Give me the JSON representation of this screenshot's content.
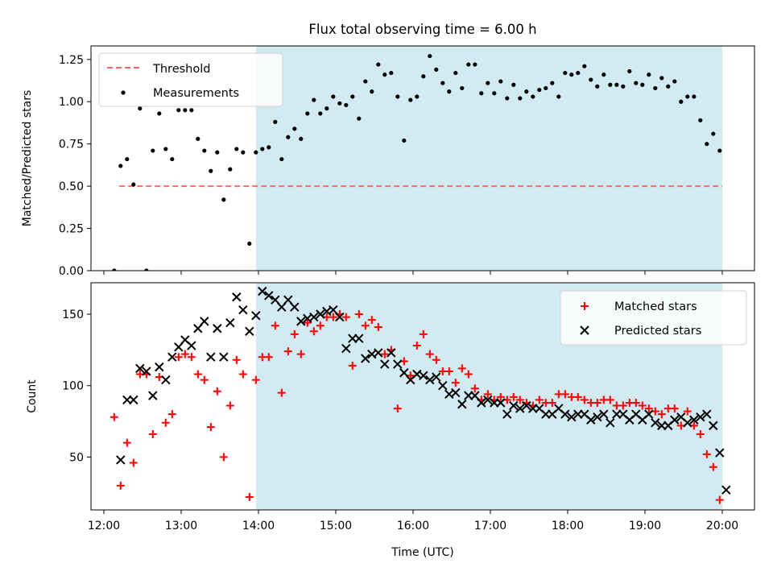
{
  "chart_data": [
    {
      "type": "scatter",
      "title": "Flux total observing time = 6.00 h",
      "xlabel": "",
      "ylabel": "Matched/Predicted stars",
      "xlim": [
        "11:50",
        "20:25"
      ],
      "ylim": [
        0,
        1.33
      ],
      "x_ticks": [
        "12:00",
        "13:00",
        "14:00",
        "15:00",
        "16:00",
        "17:00",
        "18:00",
        "19:00",
        "20:00"
      ],
      "y_ticks": [
        "0.00",
        "0.25",
        "0.50",
        "0.75",
        "1.00",
        "1.25"
      ],
      "shaded_region": {
        "start": "13:58",
        "end": "20:00",
        "color": "#add8e6"
      },
      "legend": {
        "position": "top-left",
        "entries": [
          "Threshold",
          "Measurements"
        ]
      },
      "series": [
        {
          "name": "Threshold",
          "style": "dashed-line",
          "color": "#ff6666",
          "x": [
            "12:12",
            "20:00"
          ],
          "y": [
            0.5,
            0.5
          ]
        },
        {
          "name": "Measurements",
          "style": "dot",
          "color": "#000000",
          "x": [
            "12:08",
            "12:13",
            "12:18",
            "12:23",
            "12:28",
            "12:33",
            "12:38",
            "12:43",
            "12:48",
            "12:53",
            "12:58",
            "13:03",
            "13:08",
            "13:13",
            "13:18",
            "13:23",
            "13:28",
            "13:33",
            "13:38",
            "13:43",
            "13:48",
            "13:53",
            "13:58",
            "14:03",
            "14:08",
            "14:13",
            "14:18",
            "14:23",
            "14:28",
            "14:33",
            "14:38",
            "14:43",
            "14:48",
            "14:53",
            "14:58",
            "15:03",
            "15:08",
            "15:13",
            "15:18",
            "15:23",
            "15:28",
            "15:33",
            "15:38",
            "15:43",
            "15:48",
            "15:53",
            "15:58",
            "16:03",
            "16:08",
            "16:13",
            "16:18",
            "16:23",
            "16:28",
            "16:33",
            "16:38",
            "16:43",
            "16:48",
            "16:53",
            "16:58",
            "17:03",
            "17:08",
            "17:13",
            "17:18",
            "17:23",
            "17:28",
            "17:33",
            "17:38",
            "17:43",
            "17:48",
            "17:53",
            "17:58",
            "18:03",
            "18:08",
            "18:13",
            "18:18",
            "18:23",
            "18:28",
            "18:33",
            "18:38",
            "18:43",
            "18:48",
            "18:53",
            "18:58",
            "19:03",
            "19:08",
            "19:13",
            "19:18",
            "19:23",
            "19:28",
            "19:33",
            "19:38",
            "19:43",
            "19:48",
            "19:53",
            "19:58"
          ],
          "y": [
            0.0,
            0.62,
            0.66,
            0.51,
            0.96,
            0.0,
            0.71,
            0.93,
            0.72,
            0.66,
            0.95,
            0.95,
            0.95,
            0.78,
            0.71,
            0.59,
            0.7,
            0.42,
            0.6,
            0.72,
            0.7,
            0.16,
            0.7,
            0.72,
            0.73,
            0.88,
            0.66,
            0.79,
            0.84,
            0.78,
            0.93,
            1.01,
            0.93,
            0.96,
            1.03,
            0.99,
            0.98,
            1.03,
            0.9,
            1.12,
            1.06,
            1.22,
            1.16,
            1.17,
            1.03,
            0.77,
            1.01,
            1.03,
            1.15,
            1.27,
            1.19,
            1.11,
            1.06,
            1.17,
            1.08,
            1.22,
            1.22,
            1.05,
            1.11,
            1.05,
            1.12,
            1.02,
            1.1,
            1.02,
            1.06,
            1.03,
            1.07,
            1.08,
            1.11,
            1.03,
            1.17,
            1.16,
            1.17,
            1.21,
            1.13,
            1.09,
            1.16,
            1.1,
            1.1,
            1.09,
            1.18,
            1.11,
            1.1,
            1.16,
            1.08,
            1.14,
            1.09,
            1.12,
            1.0,
            1.03,
            1.03,
            0.89,
            0.75,
            0.81,
            0.71
          ]
        }
      ]
    },
    {
      "type": "scatter",
      "title": "",
      "xlabel": "Time (UTC)",
      "ylabel": "Count",
      "xlim": [
        "11:50",
        "20:25"
      ],
      "ylim": [
        13,
        172
      ],
      "x_ticks": [
        "12:00",
        "13:00",
        "14:00",
        "15:00",
        "16:00",
        "17:00",
        "18:00",
        "19:00",
        "20:00"
      ],
      "y_ticks": [
        "50",
        "100",
        "150"
      ],
      "shaded_region": {
        "start": "13:58",
        "end": "20:00",
        "color": "#add8e6"
      },
      "legend": {
        "position": "top-right",
        "entries": [
          "Matched stars",
          "Predicted stars"
        ]
      },
      "series": [
        {
          "name": "Matched stars",
          "marker": "plus",
          "color": "#ff0000",
          "x": [
            "12:08",
            "12:13",
            "12:18",
            "12:23",
            "12:28",
            "12:33",
            "12:38",
            "12:43",
            "12:48",
            "12:53",
            "12:58",
            "13:03",
            "13:08",
            "13:13",
            "13:18",
            "13:23",
            "13:28",
            "13:33",
            "13:38",
            "13:43",
            "13:48",
            "13:53",
            "13:58",
            "14:03",
            "14:08",
            "14:13",
            "14:18",
            "14:23",
            "14:28",
            "14:33",
            "14:38",
            "14:43",
            "14:48",
            "14:53",
            "14:58",
            "15:03",
            "15:08",
            "15:13",
            "15:18",
            "15:23",
            "15:28",
            "15:33",
            "15:38",
            "15:43",
            "15:48",
            "15:53",
            "15:58",
            "16:03",
            "16:08",
            "16:13",
            "16:18",
            "16:23",
            "16:28",
            "16:33",
            "16:38",
            "16:43",
            "16:48",
            "16:53",
            "16:58",
            "17:03",
            "17:08",
            "17:13",
            "17:18",
            "17:23",
            "17:28",
            "17:33",
            "17:38",
            "17:43",
            "17:48",
            "17:53",
            "17:58",
            "18:03",
            "18:08",
            "18:13",
            "18:18",
            "18:23",
            "18:28",
            "18:33",
            "18:38",
            "18:43",
            "18:48",
            "18:53",
            "18:58",
            "19:03",
            "19:08",
            "19:13",
            "19:18",
            "19:23",
            "19:28",
            "19:33",
            "19:38",
            "19:43",
            "19:48",
            "19:53",
            "19:58"
          ],
          "y": [
            78,
            30,
            60,
            46,
            108,
            108,
            66,
            106,
            74,
            80,
            120,
            122,
            120,
            108,
            104,
            71,
            96,
            50,
            86,
            118,
            108,
            22,
            104,
            120,
            120,
            142,
            95,
            124,
            136,
            122,
            144,
            138,
            142,
            148,
            148,
            150,
            148,
            114,
            150,
            142,
            146,
            141,
            122,
            125,
            84,
            117,
            107,
            128,
            136,
            122,
            118,
            110,
            110,
            102,
            112,
            108,
            98,
            90,
            94,
            90,
            92,
            90,
            92,
            90,
            88,
            86,
            90,
            88,
            88,
            94,
            94,
            92,
            92,
            90,
            88,
            88,
            90,
            90,
            86,
            86,
            88,
            88,
            86,
            84,
            82,
            80,
            84,
            84,
            72,
            82,
            72,
            66,
            52,
            43,
            20
          ]
        },
        {
          "name": "Predicted stars",
          "marker": "x",
          "color": "#000000",
          "x": [
            "12:13",
            "12:18",
            "12:23",
            "12:28",
            "12:33",
            "12:38",
            "12:43",
            "12:48",
            "12:53",
            "12:58",
            "13:03",
            "13:08",
            "13:13",
            "13:18",
            "13:23",
            "13:28",
            "13:33",
            "13:38",
            "13:43",
            "13:48",
            "13:53",
            "13:58",
            "14:03",
            "14:08",
            "14:13",
            "14:18",
            "14:23",
            "14:28",
            "14:33",
            "14:38",
            "14:43",
            "14:48",
            "14:53",
            "14:58",
            "15:03",
            "15:08",
            "15:13",
            "15:18",
            "15:23",
            "15:28",
            "15:33",
            "15:38",
            "15:43",
            "15:48",
            "15:53",
            "15:58",
            "16:03",
            "16:08",
            "16:13",
            "16:18",
            "16:23",
            "16:28",
            "16:33",
            "16:38",
            "16:43",
            "16:48",
            "16:53",
            "16:58",
            "17:03",
            "17:08",
            "17:13",
            "17:18",
            "17:23",
            "17:28",
            "17:33",
            "17:38",
            "17:43",
            "17:48",
            "17:53",
            "17:58",
            "18:03",
            "18:08",
            "18:13",
            "18:18",
            "18:23",
            "18:28",
            "18:33",
            "18:38",
            "18:43",
            "18:48",
            "18:53",
            "18:58",
            "19:03",
            "19:08",
            "19:13",
            "19:18",
            "19:23",
            "19:28",
            "19:33",
            "19:38",
            "19:43",
            "19:48",
            "19:53",
            "19:58",
            "20:03"
          ],
          "y": [
            48,
            90,
            90,
            112,
            110,
            93,
            113,
            104,
            120,
            127,
            132,
            128,
            140,
            145,
            120,
            140,
            120,
            144,
            162,
            153,
            138,
            149,
            166,
            163,
            160,
            155,
            160,
            155,
            145,
            147,
            148,
            150,
            152,
            153,
            148,
            126,
            133,
            133,
            119,
            122,
            123,
            115,
            123,
            115,
            109,
            104,
            108,
            107,
            104,
            106,
            100,
            94,
            95,
            87,
            93,
            93,
            88,
            90,
            88,
            88,
            80,
            86,
            84,
            86,
            84,
            84,
            80,
            80,
            84,
            80,
            78,
            80,
            80,
            76,
            78,
            80,
            74,
            80,
            80,
            76,
            80,
            76,
            80,
            74,
            72,
            72,
            76,
            78,
            74,
            76,
            78,
            80,
            72,
            53,
            27
          ]
        }
      ]
    }
  ]
}
